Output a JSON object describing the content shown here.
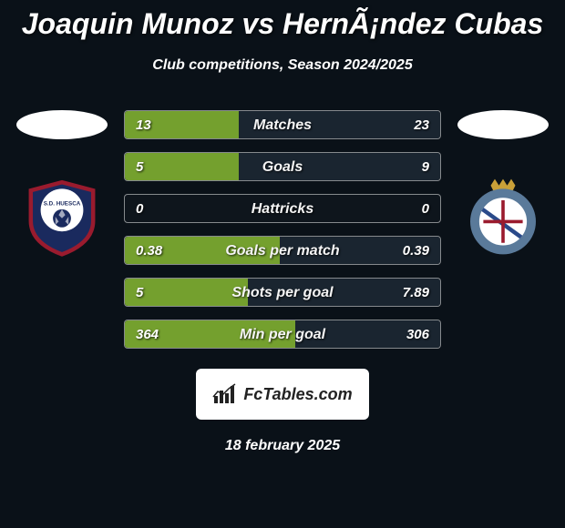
{
  "title": "Joaquin Munoz vs HernÃ¡ndez Cubas",
  "subtitle": "Club competitions, Season 2024/2025",
  "date": "18 february 2025",
  "logo_text": "FcTables.com",
  "background_color": "#0a1118",
  "left_fill_color": "#74a02e",
  "right_fill_color": "#1a2530",
  "text_color": "#ffffff",
  "left_club": {
    "ellipse_color": "#ffffff",
    "crest": {
      "shield_fill": "#1a2a5e",
      "shield_stroke": "#9a1b2e",
      "inner_circle": "#ffffff",
      "ball_color": "#1a2a5e",
      "text": "S.D. HUESCA",
      "text_color": "#1a2a5e"
    }
  },
  "right_club": {
    "ellipse_color": "#ffffff",
    "crest": {
      "outer_ring": "#5a7a9a",
      "inner_bg": "#ffffff",
      "cross_color": "#9a1b2e",
      "diagonal_color": "#2a4a8a",
      "crown_color": "#c9a038"
    }
  },
  "stats": [
    {
      "label": "Matches",
      "left_val": "13",
      "right_val": "23",
      "left_pct": 36,
      "right_pct": 64
    },
    {
      "label": "Goals",
      "left_val": "5",
      "right_val": "9",
      "left_pct": 36,
      "right_pct": 64
    },
    {
      "label": "Hattricks",
      "left_val": "0",
      "right_val": "0",
      "left_pct": 0,
      "right_pct": 0
    },
    {
      "label": "Goals per match",
      "left_val": "0.38",
      "right_val": "0.39",
      "left_pct": 49,
      "right_pct": 51
    },
    {
      "label": "Shots per goal",
      "left_val": "5",
      "right_val": "7.89",
      "left_pct": 39,
      "right_pct": 61
    },
    {
      "label": "Min per goal",
      "left_val": "364",
      "right_val": "306",
      "left_pct": 54,
      "right_pct": 46
    }
  ]
}
